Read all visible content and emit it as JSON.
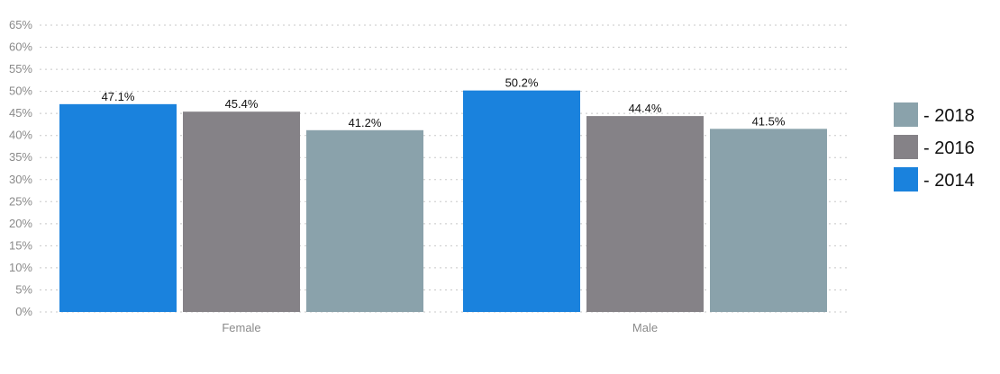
{
  "chart_data": {
    "type": "bar",
    "categories": [
      "Female",
      "Male"
    ],
    "series": [
      {
        "name": "- 2014",
        "color": "#1a82dd",
        "values": [
          47.1,
          50.2
        ],
        "labels": [
          "47.1%",
          "50.2%"
        ]
      },
      {
        "name": "- 2016",
        "color": "#858287",
        "values": [
          45.4,
          44.4
        ],
        "labels": [
          "45.4%",
          "44.4%"
        ]
      },
      {
        "name": "- 2018",
        "color": "#8aa2ab",
        "values": [
          41.2,
          41.5
        ],
        "labels": [
          "41.2%",
          "41.5%"
        ]
      }
    ],
    "ylim": [
      0,
      65
    ],
    "yticks": [
      0,
      5,
      10,
      15,
      20,
      25,
      30,
      35,
      40,
      45,
      50,
      55,
      60,
      65
    ],
    "ytick_labels": [
      "0%",
      "5%",
      "10%",
      "15%",
      "20%",
      "25%",
      "30%",
      "35%",
      "40%",
      "45%",
      "50%",
      "55%",
      "60%",
      "65%"
    ],
    "legend_order": [
      "- 2018",
      "- 2016",
      "- 2014"
    ],
    "legend_position": "right",
    "grid": "horizontal-dotted",
    "title": "",
    "xlabel": "",
    "ylabel": ""
  }
}
